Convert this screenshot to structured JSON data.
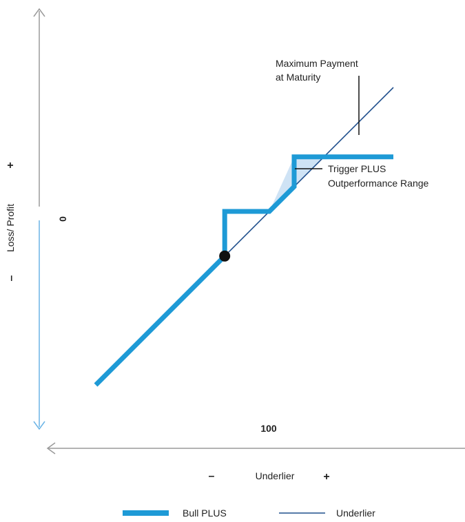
{
  "chart_data": {
    "type": "line",
    "series": [
      {
        "name": "Bull PLUS",
        "color": "#1e9ad6",
        "style": "thick",
        "points": [
          [
            30,
            30
          ],
          [
            82,
            82
          ],
          [
            82,
            100
          ],
          [
            100,
            100
          ],
          [
            110,
            110
          ],
          [
            110,
            122
          ],
          [
            150,
            122
          ]
        ]
      },
      {
        "name": "Underlier",
        "color": "#1f4e8c",
        "style": "thin",
        "points": [
          [
            82,
            82
          ],
          [
            150,
            150
          ]
        ]
      }
    ],
    "shaded_region": {
      "label": "Trigger PLUS Outperformance Range",
      "color": "#cfe3f5"
    },
    "marker": {
      "x": 82,
      "y": 82,
      "color": "#111111"
    },
    "x_tick_label": "100",
    "y_tick_label": "0",
    "xlabel": "Underlier",
    "ylabel": "Loss/ Profit",
    "x_minus": "–",
    "x_plus": "+",
    "y_plus": "+",
    "y_minus": "–",
    "annotations": {
      "max_payment_line1": "Maximum Payment",
      "max_payment_line2": "at Maturity",
      "trigger_line1": "Trigger PLUS",
      "trigger_line2": "Outperformance Range"
    },
    "legend": [
      {
        "name": "Bull PLUS",
        "style": "thick",
        "color": "#1e9ad6"
      },
      {
        "name": "Underlier",
        "style": "thin",
        "color": "#1f4e8c"
      }
    ],
    "axis_color": "#9a9a9a",
    "grid": false
  }
}
